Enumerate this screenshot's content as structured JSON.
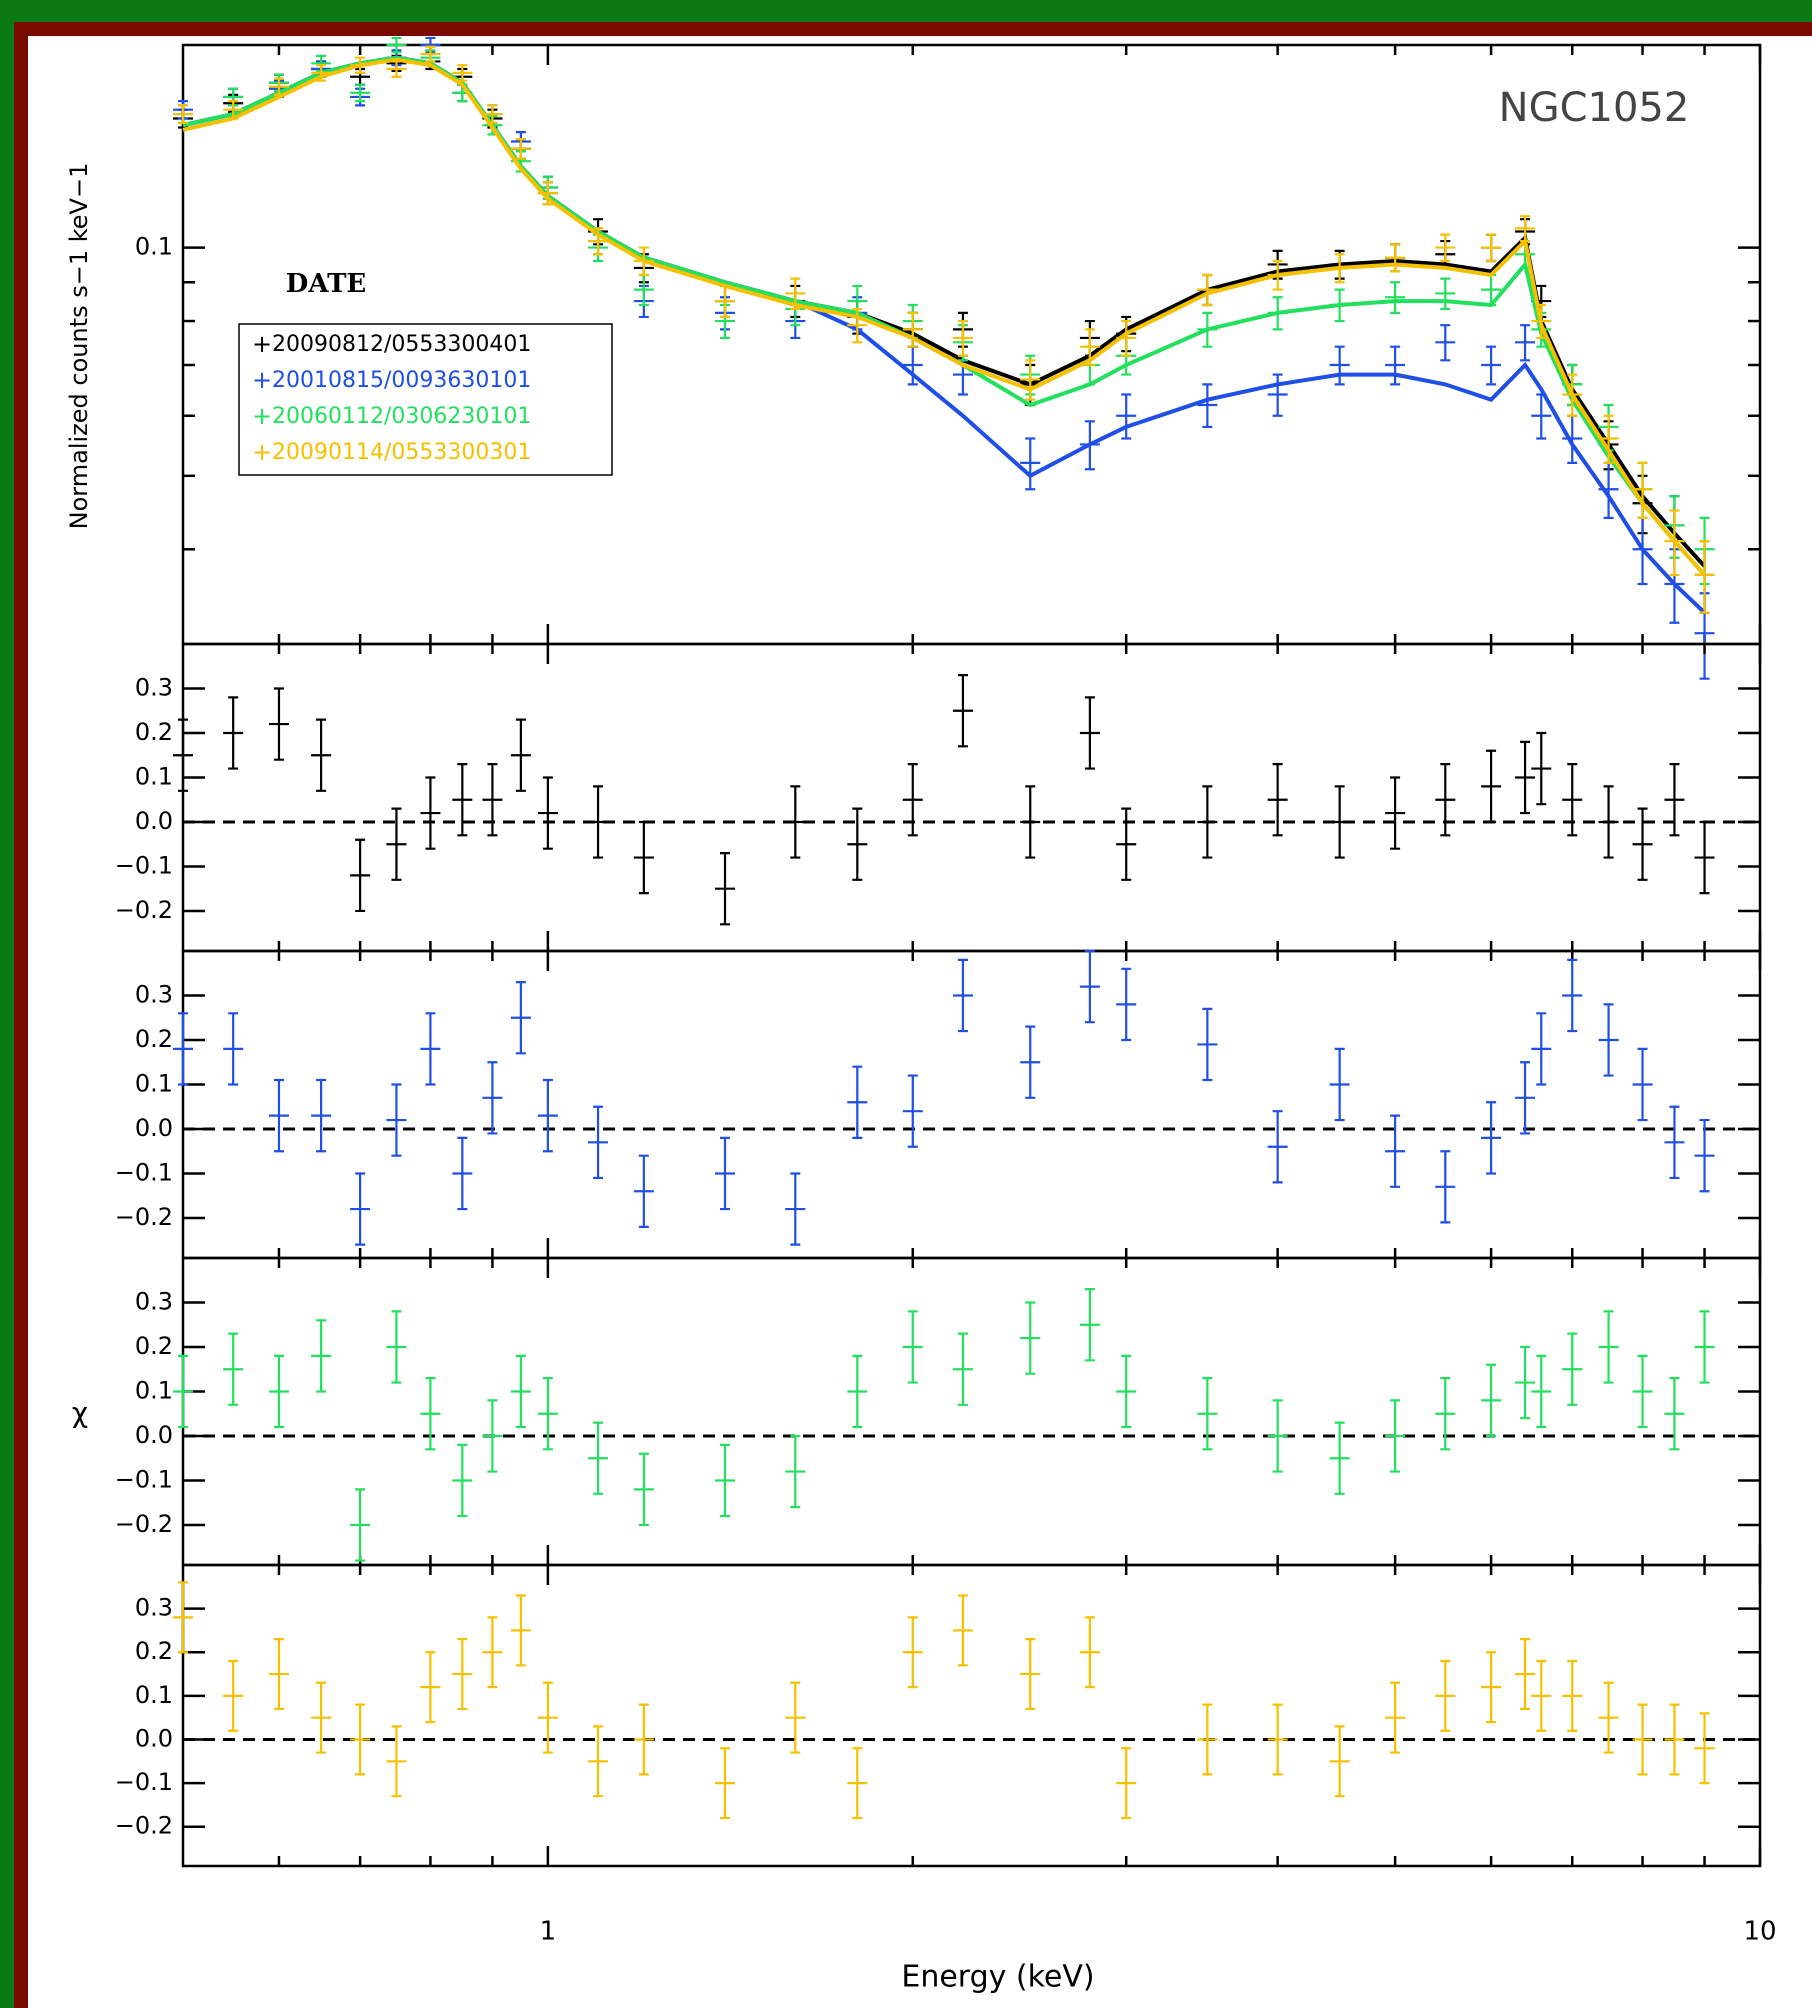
{
  "chart_data": [
    {
      "type": "errorbar",
      "title": "NGC1052",
      "y_label": "Normalized counts s−1 keV−1",
      "legend_title": "DATE",
      "log_x": true,
      "log_y": true,
      "xlim": [
        0.5,
        10
      ],
      "ylim": [
        0.03,
        0.185
      ],
      "xticks": [
        1,
        10
      ],
      "xminor": [
        0.6,
        0.7,
        0.8,
        0.9,
        2,
        3,
        4,
        5,
        6,
        7,
        8,
        9
      ],
      "yticks": [
        0.1
      ],
      "yminor": [
        0.04,
        0.05,
        0.06,
        0.07,
        0.08,
        0.09
      ],
      "x": [
        0.5,
        0.55,
        0.6,
        0.65,
        0.7,
        0.75,
        0.8,
        0.85,
        0.9,
        0.95,
        1.0,
        1.1,
        1.2,
        1.4,
        1.6,
        1.8,
        2.0,
        2.2,
        2.5,
        2.8,
        3.0,
        3.5,
        4.0,
        4.5,
        5.0,
        5.5,
        6.0,
        6.4,
        6.6,
        7.0,
        7.5,
        8.0,
        8.5,
        9.0
      ],
      "series": [
        {
          "name": "20090812/0553300401",
          "color": "#000000",
          "error": 0.004,
          "values": [
            0.148,
            0.155,
            0.165,
            0.172,
            0.168,
            0.175,
            0.176,
            0.168,
            0.148,
            0.135,
            0.118,
            0.105,
            0.094,
            0.085,
            0.085,
            0.081,
            0.078,
            0.078,
            0.066,
            0.076,
            0.077,
            0.088,
            0.095,
            0.095,
            0.097,
            0.098,
            0.1,
            0.105,
            0.085,
            0.066,
            0.055,
            0.046,
            0.043,
            0.037
          ],
          "model": [
            0.145,
            0.15,
            0.16,
            0.17,
            0.175,
            0.178,
            0.175,
            0.165,
            0.145,
            0.128,
            0.117,
            0.105,
            0.097,
            0.09,
            0.085,
            0.082,
            0.077,
            0.071,
            0.066,
            0.072,
            0.078,
            0.088,
            0.093,
            0.095,
            0.096,
            0.095,
            0.093,
            0.103,
            0.08,
            0.065,
            0.055,
            0.047,
            0.042,
            0.038
          ]
        },
        {
          "name": "20010815/0093630101",
          "color": "#1f4fe6",
          "error": 0.004,
          "values": [
            0.152,
            0.158,
            0.162,
            0.172,
            0.158,
            0.178,
            0.185,
            0.16,
            0.15,
            0.138,
            0.12,
            0.102,
            0.085,
            0.082,
            0.08,
            0.082,
            0.07,
            0.068,
            0.052,
            0.055,
            0.06,
            0.062,
            0.064,
            0.07,
            0.07,
            0.075,
            0.07,
            0.075,
            0.06,
            0.056,
            0.048,
            0.04,
            0.036,
            0.031
          ],
          "model": [
            0.145,
            0.15,
            0.16,
            0.17,
            0.175,
            0.178,
            0.175,
            0.165,
            0.145,
            0.128,
            0.117,
            0.105,
            0.097,
            0.09,
            0.085,
            0.078,
            0.068,
            0.06,
            0.05,
            0.055,
            0.058,
            0.063,
            0.066,
            0.068,
            0.068,
            0.066,
            0.063,
            0.07,
            0.065,
            0.055,
            0.047,
            0.04,
            0.036,
            0.033
          ]
        },
        {
          "name": "20060112/0306230101",
          "color": "#22e05e",
          "error": 0.004,
          "values": [
            0.15,
            0.158,
            0.165,
            0.175,
            0.16,
            0.185,
            0.178,
            0.16,
            0.145,
            0.13,
            0.12,
            0.1,
            0.088,
            0.08,
            0.083,
            0.085,
            0.08,
            0.075,
            0.068,
            0.07,
            0.072,
            0.078,
            0.082,
            0.084,
            0.086,
            0.087,
            0.088,
            0.098,
            0.078,
            0.066,
            0.058,
            0.048,
            0.043,
            0.04
          ],
          "model": [
            0.145,
            0.15,
            0.16,
            0.17,
            0.175,
            0.178,
            0.175,
            0.165,
            0.145,
            0.128,
            0.117,
            0.105,
            0.097,
            0.09,
            0.085,
            0.082,
            0.076,
            0.07,
            0.062,
            0.066,
            0.07,
            0.078,
            0.082,
            0.084,
            0.085,
            0.085,
            0.084,
            0.095,
            0.077,
            0.063,
            0.053,
            0.046,
            0.041,
            0.037
          ]
        },
        {
          "name": "20090114/0553300301",
          "color": "#f5c000",
          "error": 0.004,
          "values": [
            0.15,
            0.152,
            0.163,
            0.17,
            0.174,
            0.172,
            0.18,
            0.17,
            0.15,
            0.135,
            0.118,
            0.102,
            0.096,
            0.085,
            0.087,
            0.079,
            0.078,
            0.076,
            0.067,
            0.074,
            0.076,
            0.088,
            0.092,
            0.094,
            0.097,
            0.1,
            0.1,
            0.106,
            0.08,
            0.064,
            0.056,
            0.048,
            0.041,
            0.037
          ],
          "model": [
            0.143,
            0.148,
            0.158,
            0.168,
            0.174,
            0.177,
            0.174,
            0.164,
            0.144,
            0.127,
            0.116,
            0.104,
            0.096,
            0.089,
            0.084,
            0.081,
            0.076,
            0.07,
            0.065,
            0.071,
            0.077,
            0.087,
            0.092,
            0.094,
            0.095,
            0.094,
            0.092,
            0.102,
            0.079,
            0.064,
            0.054,
            0.046,
            0.041,
            0.037
          ]
        }
      ]
    },
    {
      "type": "errorbar",
      "log_x": true,
      "zero_line": true,
      "xlim": [
        0.5,
        10
      ],
      "ylim": [
        -0.29,
        0.4
      ],
      "xticks": [
        1,
        10
      ],
      "xminor": [
        0.6,
        0.7,
        0.8,
        0.9,
        2,
        3,
        4,
        5,
        6,
        7,
        8,
        9
      ],
      "yticks": [
        0.3,
        0.2,
        0.1,
        {
          "value": 0,
          "label": "0.0"
        },
        {
          "value": -0.1,
          "label": "−0.1"
        },
        {
          "value": -0.2,
          "label": "−0.2"
        }
      ],
      "x": [
        0.5,
        0.55,
        0.6,
        0.65,
        0.7,
        0.75,
        0.8,
        0.85,
        0.9,
        0.95,
        1.0,
        1.1,
        1.2,
        1.4,
        1.6,
        1.8,
        2.0,
        2.2,
        2.5,
        2.8,
        3.0,
        3.5,
        4.0,
        4.5,
        5.0,
        5.5,
        6.0,
        6.4,
        6.6,
        7.0,
        7.5,
        8.0,
        8.5,
        9.0
      ],
      "series": [
        {
          "color": "#000000",
          "error": 0.08,
          "values": [
            0.15,
            0.2,
            0.22,
            0.15,
            -0.12,
            -0.05,
            0.02,
            0.05,
            0.05,
            0.15,
            0.02,
            0.0,
            -0.08,
            -0.15,
            0.0,
            -0.05,
            0.05,
            0.25,
            0.0,
            0.2,
            -0.05,
            0.0,
            0.05,
            0.0,
            0.02,
            0.05,
            0.08,
            0.1,
            0.12,
            0.05,
            0.0,
            -0.05,
            0.05,
            -0.08
          ]
        }
      ]
    },
    {
      "type": "errorbar",
      "log_x": true,
      "zero_line": true,
      "y_label": "χ",
      "xlim": [
        0.5,
        10
      ],
      "ylim": [
        -0.29,
        0.4
      ],
      "xticks": [
        1,
        10
      ],
      "xminor": [
        0.6,
        0.7,
        0.8,
        0.9,
        2,
        3,
        4,
        5,
        6,
        7,
        8,
        9
      ],
      "yticks": [
        0.3,
        0.2,
        0.1,
        {
          "value": 0,
          "label": "0.0"
        },
        {
          "value": -0.1,
          "label": "−0.1"
        },
        {
          "value": -0.2,
          "label": "−0.2"
        }
      ],
      "x": [
        0.5,
        0.55,
        0.6,
        0.65,
        0.7,
        0.75,
        0.8,
        0.85,
        0.9,
        0.95,
        1.0,
        1.1,
        1.2,
        1.4,
        1.6,
        1.8,
        2.0,
        2.2,
        2.5,
        2.8,
        3.0,
        3.5,
        4.0,
        4.5,
        5.0,
        5.5,
        6.0,
        6.4,
        6.6,
        7.0,
        7.5,
        8.0,
        8.5,
        9.0
      ],
      "series": [
        {
          "color": "#1f4fe6",
          "error": 0.08,
          "values": [
            0.18,
            0.18,
            0.03,
            0.03,
            -0.18,
            0.02,
            0.18,
            -0.1,
            0.07,
            0.25,
            0.03,
            -0.03,
            -0.14,
            -0.1,
            -0.18,
            0.06,
            0.04,
            0.3,
            0.15,
            0.32,
            0.28,
            0.19,
            -0.04,
            0.1,
            -0.05,
            -0.13,
            -0.02,
            0.07,
            0.18,
            0.3,
            0.2,
            0.1,
            -0.03,
            -0.06
          ]
        }
      ]
    },
    {
      "type": "errorbar",
      "log_x": true,
      "zero_line": true,
      "xlim": [
        0.5,
        10
      ],
      "ylim": [
        -0.29,
        0.4
      ],
      "xticks": [
        1,
        10
      ],
      "xminor": [
        0.6,
        0.7,
        0.8,
        0.9,
        2,
        3,
        4,
        5,
        6,
        7,
        8,
        9
      ],
      "yticks": [
        0.3,
        0.2,
        0.1,
        {
          "value": 0,
          "label": "0.0"
        },
        {
          "value": -0.1,
          "label": "−0.1"
        },
        {
          "value": -0.2,
          "label": "−0.2"
        }
      ],
      "x": [
        0.5,
        0.55,
        0.6,
        0.65,
        0.7,
        0.75,
        0.8,
        0.85,
        0.9,
        0.95,
        1.0,
        1.1,
        1.2,
        1.4,
        1.6,
        1.8,
        2.0,
        2.2,
        2.5,
        2.8,
        3.0,
        3.5,
        4.0,
        4.5,
        5.0,
        5.5,
        6.0,
        6.4,
        6.6,
        7.0,
        7.5,
        8.0,
        8.5,
        9.0
      ],
      "series": [
        {
          "color": "#22e05e",
          "error": 0.08,
          "values": [
            0.1,
            0.15,
            0.1,
            0.18,
            -0.2,
            0.2,
            0.05,
            -0.1,
            0.0,
            0.1,
            0.05,
            -0.05,
            -0.12,
            -0.1,
            -0.08,
            0.1,
            0.2,
            0.15,
            0.22,
            0.25,
            0.1,
            0.05,
            0.0,
            -0.05,
            0.0,
            0.05,
            0.08,
            0.12,
            0.1,
            0.15,
            0.2,
            0.1,
            0.05,
            0.2
          ]
        }
      ]
    },
    {
      "type": "errorbar",
      "log_x": true,
      "zero_line": true,
      "x_label": "Energy (keV)",
      "xlim": [
        0.5,
        10
      ],
      "ylim": [
        -0.29,
        0.4
      ],
      "xticks": [
        1,
        10
      ],
      "xminor": [
        0.6,
        0.7,
        0.8,
        0.9,
        2,
        3,
        4,
        5,
        6,
        7,
        8,
        9
      ],
      "yticks": [
        0.3,
        0.2,
        0.1,
        {
          "value": 0,
          "label": "0.0"
        },
        {
          "value": -0.1,
          "label": "−0.1"
        },
        {
          "value": -0.2,
          "label": "−0.2"
        }
      ],
      "x": [
        0.5,
        0.55,
        0.6,
        0.65,
        0.7,
        0.75,
        0.8,
        0.85,
        0.9,
        0.95,
        1.0,
        1.1,
        1.2,
        1.4,
        1.6,
        1.8,
        2.0,
        2.2,
        2.5,
        2.8,
        3.0,
        3.5,
        4.0,
        4.5,
        5.0,
        5.5,
        6.0,
        6.4,
        6.6,
        7.0,
        7.5,
        8.0,
        8.5,
        9.0
      ],
      "series": [
        {
          "color": "#f5c000",
          "error": 0.08,
          "values": [
            0.28,
            0.1,
            0.15,
            0.05,
            0.0,
            -0.05,
            0.12,
            0.15,
            0.2,
            0.25,
            0.05,
            -0.05,
            0.0,
            -0.1,
            0.05,
            -0.1,
            0.2,
            0.25,
            0.15,
            0.2,
            -0.1,
            0.0,
            0.0,
            -0.05,
            0.05,
            0.1,
            0.12,
            0.15,
            0.1,
            0.1,
            0.05,
            0.0,
            0.0,
            -0.02
          ]
        }
      ]
    }
  ]
}
